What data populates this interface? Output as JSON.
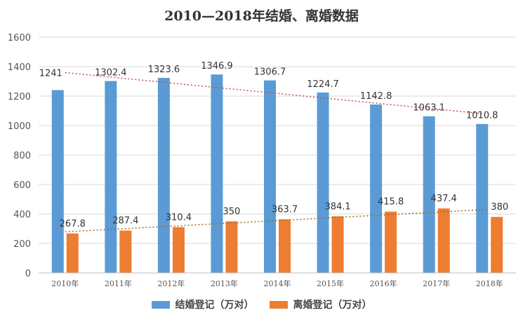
{
  "chart_data": {
    "type": "bar",
    "title": "2010—2018年结婚、离婚数据",
    "categories": [
      "2010年",
      "2011年",
      "2012年",
      "2013年",
      "2014年",
      "2015年",
      "2016年",
      "2017年",
      "2018年"
    ],
    "series": [
      {
        "name": "结婚登记（万对）",
        "color": "#5b9bd5",
        "values": [
          1241,
          1302.4,
          1323.6,
          1346.9,
          1306.7,
          1224.7,
          1142.8,
          1063.1,
          1010.8
        ],
        "trendline": "linear",
        "trend_color": "#c0504d"
      },
      {
        "name": "离婚登记（万对）",
        "color": "#ed7d31",
        "values": [
          267.8,
          287.4,
          310.4,
          350,
          363.7,
          384.1,
          415.8,
          437.4,
          380
        ],
        "trendline": "linear",
        "trend_color": "#9b6b2f"
      }
    ],
    "ylim": [
      0,
      1600
    ],
    "yticks": [
      0,
      200,
      400,
      600,
      800,
      1000,
      1200,
      1400,
      1600
    ],
    "grid": true,
    "legend": "bottom",
    "data_labels": true
  }
}
